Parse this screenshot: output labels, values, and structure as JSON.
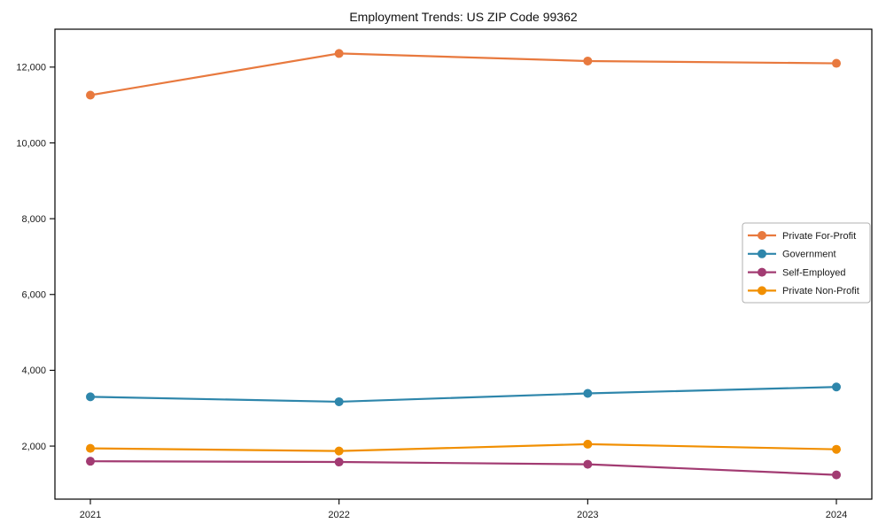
{
  "chart_data": {
    "type": "line",
    "title": "Employment Trends: US ZIP Code 99362",
    "xlabel": "",
    "ylabel": "",
    "x": [
      "2021",
      "2022",
      "2023",
      "2024"
    ],
    "series": [
      {
        "name": "Private For-Profit",
        "color": "#E8793E",
        "values": [
          11260,
          12360,
          12160,
          12100
        ]
      },
      {
        "name": "Government",
        "color": "#2E86AB",
        "values": [
          3300,
          3170,
          3390,
          3560
        ]
      },
      {
        "name": "Self-Employed",
        "color": "#A23B72",
        "values": [
          1600,
          1580,
          1520,
          1240
        ]
      },
      {
        "name": "Private Non-Profit",
        "color": "#F18F01",
        "values": [
          1940,
          1870,
          2050,
          1915
        ]
      }
    ],
    "ylim": [
      600,
      13000
    ],
    "yticks": [
      2000,
      4000,
      6000,
      8000,
      10000,
      12000
    ],
    "grid": false,
    "legend_position": "right",
    "frame_color": "#000000",
    "legend_border_color": "#b0b0b0"
  }
}
